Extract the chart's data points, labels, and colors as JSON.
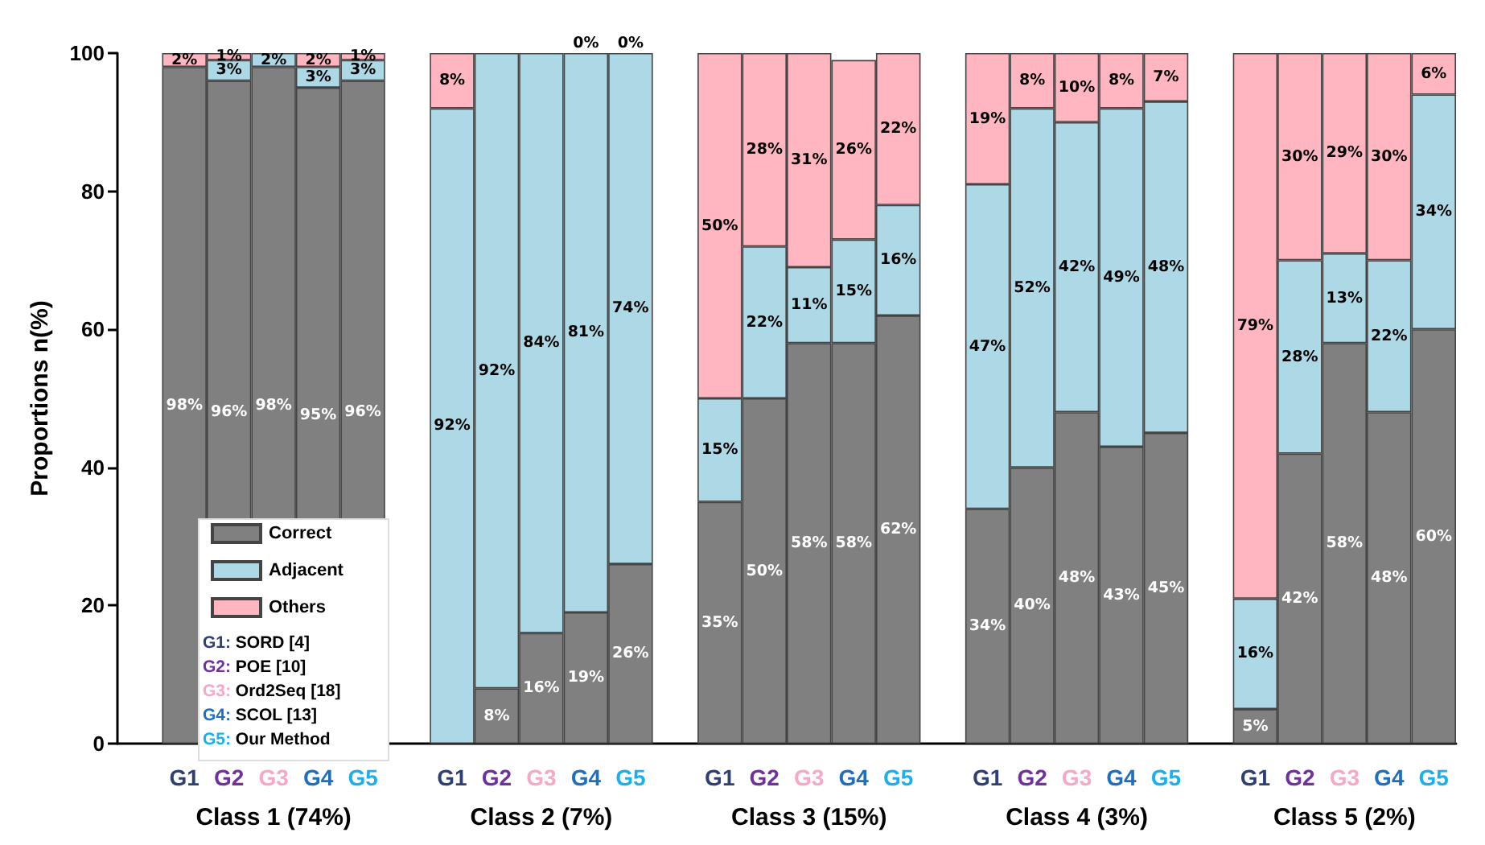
{
  "chart_data": {
    "type": "bar",
    "stacked": true,
    "ylabel": "Proportions n(%)",
    "ylim": [
      0,
      100
    ],
    "yticks": [
      0,
      20,
      40,
      60,
      80,
      100
    ],
    "grid": false,
    "legend": "bottom left",
    "categories": [
      null,
      "G1",
      "G2",
      "G3",
      "G4",
      "G5",
      null,
      "G1",
      "G2",
      "G3",
      "G4",
      "G5",
      null,
      "G1",
      "G2",
      "G3",
      "G4",
      "G5",
      null,
      "G1",
      "G2",
      "G3",
      "G4",
      "G5",
      null,
      "G1",
      "G2",
      "G3",
      "G4",
      "G5"
    ],
    "series": [
      {
        "name": "Correct",
        "color": "#808080",
        "values": [
          null,
          98,
          96,
          98,
          95,
          96,
          null,
          0,
          8,
          16,
          19,
          26,
          null,
          35,
          50,
          58,
          58,
          62,
          null,
          34,
          40,
          48,
          43,
          45,
          null,
          5,
          42,
          58,
          48,
          60
        ],
        "value_labels": [
          null,
          "98%",
          "96%",
          "98%",
          "95%",
          "96%",
          null,
          null,
          "8%",
          "16%",
          "19%",
          "26%",
          null,
          "35%",
          "50%",
          "58%",
          "58%",
          "62%",
          null,
          "34%",
          "40%",
          "48%",
          "43%",
          "45%",
          null,
          "5%",
          "42%",
          "58%",
          "48%",
          "60%"
        ]
      },
      {
        "name": "Adjacent",
        "color": "#add8e6",
        "values": [
          null,
          0,
          3,
          2,
          3,
          3,
          null,
          92,
          92,
          84,
          81,
          74,
          null,
          15,
          22,
          11,
          15,
          16,
          null,
          47,
          52,
          42,
          49,
          48,
          null,
          16,
          28,
          13,
          22,
          34
        ],
        "value_labels": [
          null,
          null,
          "3%",
          "2%",
          "3%",
          "3%",
          null,
          "92%",
          "92%",
          "84%",
          "81%",
          "74%",
          null,
          "15%",
          "22%",
          "11%",
          "15%",
          "16%",
          null,
          "47%",
          "52%",
          "42%",
          "49%",
          "48%",
          null,
          "16%",
          "28%",
          "13%",
          "22%",
          "34%"
        ]
      },
      {
        "name": "Others",
        "color": "#ffb6c1",
        "values": [
          null,
          2,
          1,
          0,
          2,
          1,
          null,
          8,
          0,
          0,
          0,
          0,
          null,
          50,
          28,
          31,
          26,
          22,
          null,
          19,
          8,
          10,
          8,
          7,
          null,
          79,
          30,
          29,
          30,
          6
        ],
        "value_labels": [
          null,
          "2%",
          "1%",
          null,
          "2%",
          "1%",
          null,
          "8%",
          null,
          null,
          "0%",
          "0%",
          null,
          "50%",
          "28%",
          "31%",
          "26%",
          "22%",
          null,
          "19%",
          "8%",
          "10%",
          "8%",
          "7%",
          null,
          "79%",
          "30%",
          "29%",
          "30%",
          "6%"
        ]
      }
    ],
    "annotations": [
      "Class 1 (74%)",
      "Class 2 (7%)",
      "Class 3 (15%)",
      "Class 4 (3%)",
      "Class 5 (2%)",
      "G1: SORD [4]",
      "G2: POE [10]",
      "G3: Ord2Seq [18]",
      "G4: SCOL [13]",
      "G5: Our Method"
    ]
  }
}
